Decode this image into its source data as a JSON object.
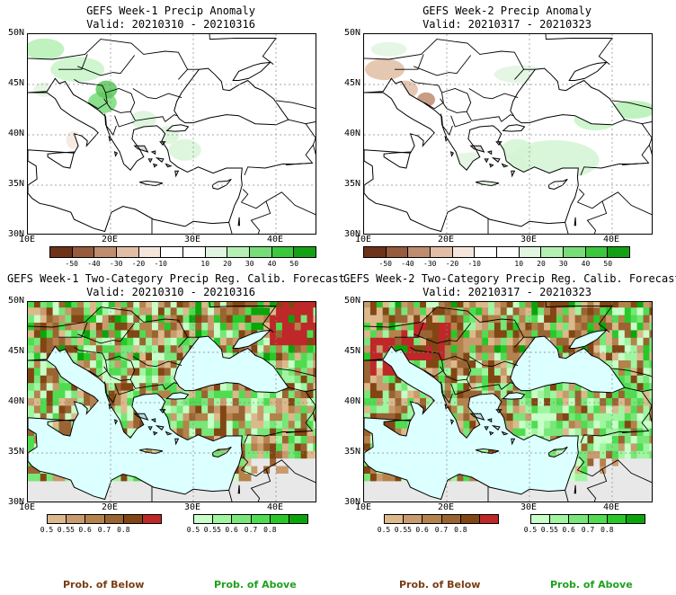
{
  "colors": {
    "ocean_prob": "#dcffff",
    "masked_land": "#e8e8e8",
    "anom_wet": "#5ac85a",
    "anom_dry": "#c8825a",
    "prob_below_text": "#7a3c14",
    "prob_above_text": "#1ea01e"
  },
  "panels": [
    {
      "id": "p1",
      "title": "GEFS Week-1 Precip Anomaly",
      "valid": "Valid: 20210310 - 20210316",
      "type": "anomaly"
    },
    {
      "id": "p2",
      "title": "GEFS Week-2 Precip Anomaly",
      "valid": "Valid: 20210317 - 20210323",
      "type": "anomaly"
    },
    {
      "id": "p3",
      "title": "GEFS Week-1 Two-Category Precip Reg. Calib. Forecast",
      "valid": "Valid: 20210310 - 20210316",
      "type": "probability"
    },
    {
      "id": "p4",
      "title": "GEFS Week-2 Two-Category Precip Reg. Calib. Forecast",
      "valid": "Valid: 20210317 - 20210323",
      "type": "probability"
    }
  ],
  "axes": {
    "lat_labels": [
      "50N",
      "45N",
      "40N",
      "35N",
      "30N"
    ],
    "lon_labels": [
      "10E",
      "20E",
      "30E",
      "40E"
    ],
    "lon_range": [
      10,
      45
    ],
    "lat_range": [
      30,
      50
    ]
  },
  "anomaly_colorbar": {
    "colors": [
      "#6e3219",
      "#965a3c",
      "#be8c6e",
      "#e1bea5",
      "#f5e6dc",
      "#ffffff",
      "#ffffff",
      "#e1f5e1",
      "#b4f0b4",
      "#78dc78",
      "#3cc83c",
      "#14a014"
    ],
    "labels": [
      "-50",
      "-40",
      "-30",
      "-20",
      "-10",
      "10",
      "20",
      "30",
      "40",
      "50"
    ]
  },
  "below_colorbar": {
    "colors": [
      "#dcb98c",
      "#c89b6e",
      "#b4824b",
      "#9a6432",
      "#824614",
      "#be2828"
    ],
    "labels": [
      "0.5",
      "0.55",
      "0.6",
      "0.7",
      "0.8"
    ]
  },
  "above_colorbar": {
    "colors": [
      "#c8ffc8",
      "#a0f5a0",
      "#78e678",
      "#50dc50",
      "#28c828",
      "#0aa50a"
    ],
    "labels": [
      "0.5",
      "0.55",
      "0.6",
      "0.7",
      "0.8"
    ]
  },
  "legend": {
    "prob_below": "Prob. of Below",
    "prob_above": "Prob. of Above"
  }
}
